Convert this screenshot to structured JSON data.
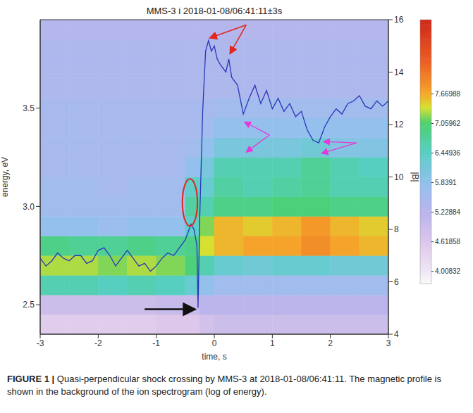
{
  "chart_data": {
    "type": "heatmap",
    "title": "MMS-3 i 2018-01-08/06:41:11±3s",
    "x_label": "time, s",
    "y_label": "energy, eV",
    "y2_label": "|B|",
    "xlim": [
      -3,
      3
    ],
    "xticks": [
      -3,
      -2,
      -1,
      0,
      1,
      2,
      3
    ],
    "ylim": [
      2.35,
      3.95
    ],
    "yticks": [
      2.5,
      {
        "value": 3,
        "label": "3.0"
      },
      3.5
    ],
    "y2lim": [
      4,
      16
    ],
    "y2ticks": [
      4,
      6,
      8,
      10,
      12,
      14,
      16
    ],
    "cells": {
      "x_edges": [
        -3,
        -2.5,
        -2,
        -1.5,
        -1,
        -0.5,
        -0.25,
        0,
        0.5,
        1,
        1.5,
        2,
        2.5,
        3
      ],
      "y_edges": [
        2.35,
        2.45,
        2.55,
        2.65,
        2.75,
        2.85,
        2.95,
        3.05,
        3.15,
        3.25,
        3.35,
        3.45,
        3.55,
        3.65,
        3.75,
        3.85,
        3.95
      ],
      "values": [
        [
          4.5,
          4.5,
          4.5,
          4.5,
          4.6,
          4.6,
          4.8,
          4.9,
          4.9,
          4.9,
          4.9,
          4.9,
          4.9
        ],
        [
          4.9,
          4.9,
          4.9,
          4.9,
          5.0,
          5.0,
          5.2,
          5.2,
          5.2,
          5.2,
          5.2,
          5.2,
          5.2
        ],
        [
          6.6,
          6.6,
          6.5,
          6.6,
          6.5,
          6.3,
          5.8,
          5.6,
          5.6,
          5.6,
          5.6,
          5.6,
          5.6
        ],
        [
          7.3,
          7.3,
          7.2,
          7.3,
          7.2,
          7.0,
          6.6,
          6.3,
          6.2,
          6.3,
          6.3,
          6.2,
          6.2
        ],
        [
          6.9,
          6.8,
          6.8,
          6.9,
          6.8,
          6.9,
          7.4,
          7.6,
          7.7,
          7.7,
          7.9,
          7.7,
          7.6
        ],
        [
          5.8,
          5.8,
          5.7,
          5.8,
          5.8,
          6.4,
          7.2,
          7.6,
          7.5,
          7.6,
          7.8,
          7.6,
          7.5
        ],
        [
          5.6,
          5.6,
          5.6,
          5.6,
          5.6,
          6.7,
          6.6,
          6.9,
          6.9,
          7.0,
          7.0,
          6.9,
          6.9
        ],
        [
          5.6,
          5.6,
          5.5,
          5.6,
          5.6,
          6.4,
          6.3,
          6.7,
          6.6,
          6.7,
          6.8,
          6.6,
          6.6
        ],
        [
          5.5,
          5.5,
          5.5,
          5.5,
          5.5,
          5.8,
          6.1,
          6.6,
          6.6,
          6.6,
          6.8,
          6.6,
          6.5
        ],
        [
          5.5,
          5.5,
          5.5,
          5.5,
          5.5,
          5.6,
          5.8,
          6.1,
          6.1,
          6.1,
          6.2,
          6.0,
          6.0
        ],
        [
          5.5,
          5.5,
          5.5,
          5.5,
          5.5,
          5.5,
          5.6,
          5.8,
          5.8,
          5.8,
          5.8,
          5.8,
          5.8
        ],
        [
          5.5,
          5.5,
          5.5,
          5.5,
          5.5,
          5.5,
          5.5,
          5.6,
          5.6,
          5.6,
          5.6,
          5.6,
          5.6
        ],
        [
          5.4,
          5.4,
          5.4,
          5.4,
          5.4,
          5.4,
          5.4,
          5.4,
          5.4,
          5.4,
          5.4,
          5.4,
          5.4
        ],
        [
          5.4,
          5.4,
          5.4,
          5.4,
          5.4,
          5.4,
          5.4,
          5.4,
          5.4,
          5.4,
          5.4,
          5.4,
          5.4
        ],
        [
          5.4,
          5.4,
          5.4,
          5.4,
          5.4,
          5.4,
          5.4,
          5.4,
          5.4,
          5.4,
          5.4,
          5.4,
          5.4
        ],
        [
          5.3,
          5.3,
          5.3,
          5.3,
          5.3,
          5.3,
          5.3,
          5.3,
          5.3,
          5.3,
          5.3,
          5.3,
          5.3
        ]
      ]
    },
    "colorbar": {
      "range": [
        3.75,
        9.2
      ],
      "ticks": [
        4.00832,
        4.61858,
        5.22884,
        5.8391,
        6.44936,
        7.05962,
        7.66988
      ]
    },
    "series": [
      {
        "type": "line",
        "axis": "y2",
        "color": "#2a36b8",
        "x": [
          -3,
          -2.9,
          -2.8,
          -2.7,
          -2.6,
          -2.5,
          -2.4,
          -2.3,
          -2.2,
          -2.1,
          -2.0,
          -1.9,
          -1.8,
          -1.7,
          -1.6,
          -1.5,
          -1.4,
          -1.3,
          -1.2,
          -1.1,
          -1.0,
          -0.9,
          -0.8,
          -0.7,
          -0.6,
          -0.5,
          -0.45,
          -0.4,
          -0.35,
          -0.3,
          -0.28,
          -0.25,
          -0.2,
          -0.15,
          -0.1,
          -0.05,
          0,
          0.05,
          0.1,
          0.2,
          0.25,
          0.3,
          0.4,
          0.5,
          0.6,
          0.7,
          0.8,
          0.9,
          1.0,
          1.1,
          1.2,
          1.3,
          1.4,
          1.5,
          1.6,
          1.7,
          1.8,
          1.9,
          2.0,
          2.1,
          2.2,
          2.3,
          2.4,
          2.5,
          2.6,
          2.7,
          2.8,
          2.9,
          3.0
        ],
        "values": [
          6.9,
          6.6,
          6.8,
          7.1,
          6.9,
          6.8,
          7.0,
          7.0,
          6.7,
          6.8,
          7.2,
          7.3,
          7.0,
          6.6,
          6.9,
          7.2,
          6.9,
          6.6,
          6.7,
          6.4,
          6.6,
          6.9,
          7.1,
          7.0,
          7.3,
          7.6,
          7.9,
          8.2,
          8.0,
          7.4,
          5.0,
          8.5,
          12.5,
          14.8,
          15.2,
          14.8,
          15.0,
          14.5,
          14.3,
          14.0,
          14.5,
          13.8,
          13.5,
          12.4,
          13.0,
          13.5,
          12.8,
          13.3,
          12.6,
          13.0,
          12.5,
          12.8,
          12.3,
          12.5,
          11.8,
          11.4,
          11.3,
          11.9,
          12.3,
          12.6,
          12.4,
          12.8,
          12.9,
          13.1,
          12.7,
          12.6,
          12.9,
          12.7,
          12.9
        ]
      }
    ],
    "caption": {
      "label": "FIGURE 1 |",
      "text": "Quasi-perpendicular shock crossing by MMS-3 at 2018-01-08/06:41:11. The magnetic profile is shown in the background of the ion spectrogram (log of energy)."
    }
  }
}
